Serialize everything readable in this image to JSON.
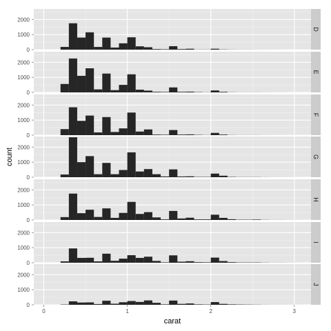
{
  "chart_data": {
    "type": "bar",
    "subtype": "faceted-histogram",
    "xlabel": "carat",
    "ylabel": "count",
    "xlim": [
      -0.12,
      3.2
    ],
    "ylim": [
      0,
      2700
    ],
    "x_ticks": [
      0,
      1,
      2,
      3
    ],
    "y_ticks": [
      0,
      1000,
      2000
    ],
    "binwidth": 0.1,
    "bin_starts": [
      0.2,
      0.3,
      0.4,
      0.5,
      0.6,
      0.7,
      0.8,
      0.9,
      1.0,
      1.1,
      1.2,
      1.3,
      1.4,
      1.5,
      1.6,
      1.7,
      1.8,
      1.9,
      2.0,
      2.1,
      2.2,
      2.3,
      2.4,
      2.5,
      2.6,
      2.7,
      2.8,
      2.9,
      3.0
    ],
    "grid": true,
    "facet_strip_position": "right",
    "colors": {
      "panel_background": "#e5e5e5",
      "grid_major": "#ffffff",
      "grid_minor": "#f2f2f2",
      "strip_background": "#cccccc",
      "bar_fill": "#262626",
      "text": "#4d4d4d"
    },
    "series": [
      {
        "name": "D",
        "values": [
          180,
          1750,
          800,
          1150,
          180,
          800,
          140,
          420,
          820,
          220,
          160,
          40,
          30,
          230,
          40,
          60,
          10,
          10,
          60,
          15,
          8,
          5,
          5,
          3,
          3,
          2,
          2,
          1,
          1
        ]
      },
      {
        "name": "E",
        "values": [
          560,
          2250,
          1100,
          1600,
          200,
          1250,
          150,
          500,
          1200,
          180,
          120,
          40,
          30,
          330,
          40,
          50,
          20,
          10,
          130,
          40,
          10,
          5,
          5,
          5,
          3,
          2,
          2,
          1,
          1
        ]
      },
      {
        "name": "F",
        "values": [
          400,
          1850,
          950,
          1300,
          180,
          1200,
          210,
          450,
          1500,
          240,
          380,
          40,
          30,
          340,
          40,
          50,
          20,
          10,
          150,
          40,
          10,
          5,
          5,
          5,
          3,
          2,
          2,
          1,
          1
        ]
      },
      {
        "name": "G",
        "values": [
          180,
          2650,
          1000,
          1400,
          200,
          950,
          200,
          480,
          1650,
          380,
          540,
          200,
          50,
          520,
          50,
          60,
          20,
          20,
          240,
          100,
          20,
          10,
          10,
          10,
          5,
          3,
          3,
          2,
          1
        ]
      },
      {
        "name": "H",
        "values": [
          190,
          1750,
          450,
          680,
          200,
          770,
          140,
          470,
          1200,
          400,
          520,
          170,
          40,
          600,
          100,
          150,
          40,
          40,
          350,
          140,
          50,
          20,
          20,
          30,
          10,
          5,
          5,
          3,
          2
        ]
      },
      {
        "name": "I",
        "values": [
          90,
          950,
          320,
          330,
          90,
          600,
          130,
          270,
          500,
          320,
          400,
          120,
          30,
          490,
          70,
          100,
          40,
          30,
          340,
          110,
          40,
          20,
          20,
          20,
          10,
          5,
          5,
          3,
          2
        ]
      },
      {
        "name": "J",
        "values": [
          20,
          230,
          150,
          160,
          50,
          270,
          70,
          170,
          250,
          190,
          290,
          130,
          30,
          280,
          60,
          90,
          30,
          20,
          180,
          60,
          30,
          20,
          15,
          10,
          5,
          3,
          3,
          2,
          1
        ]
      }
    ]
  }
}
